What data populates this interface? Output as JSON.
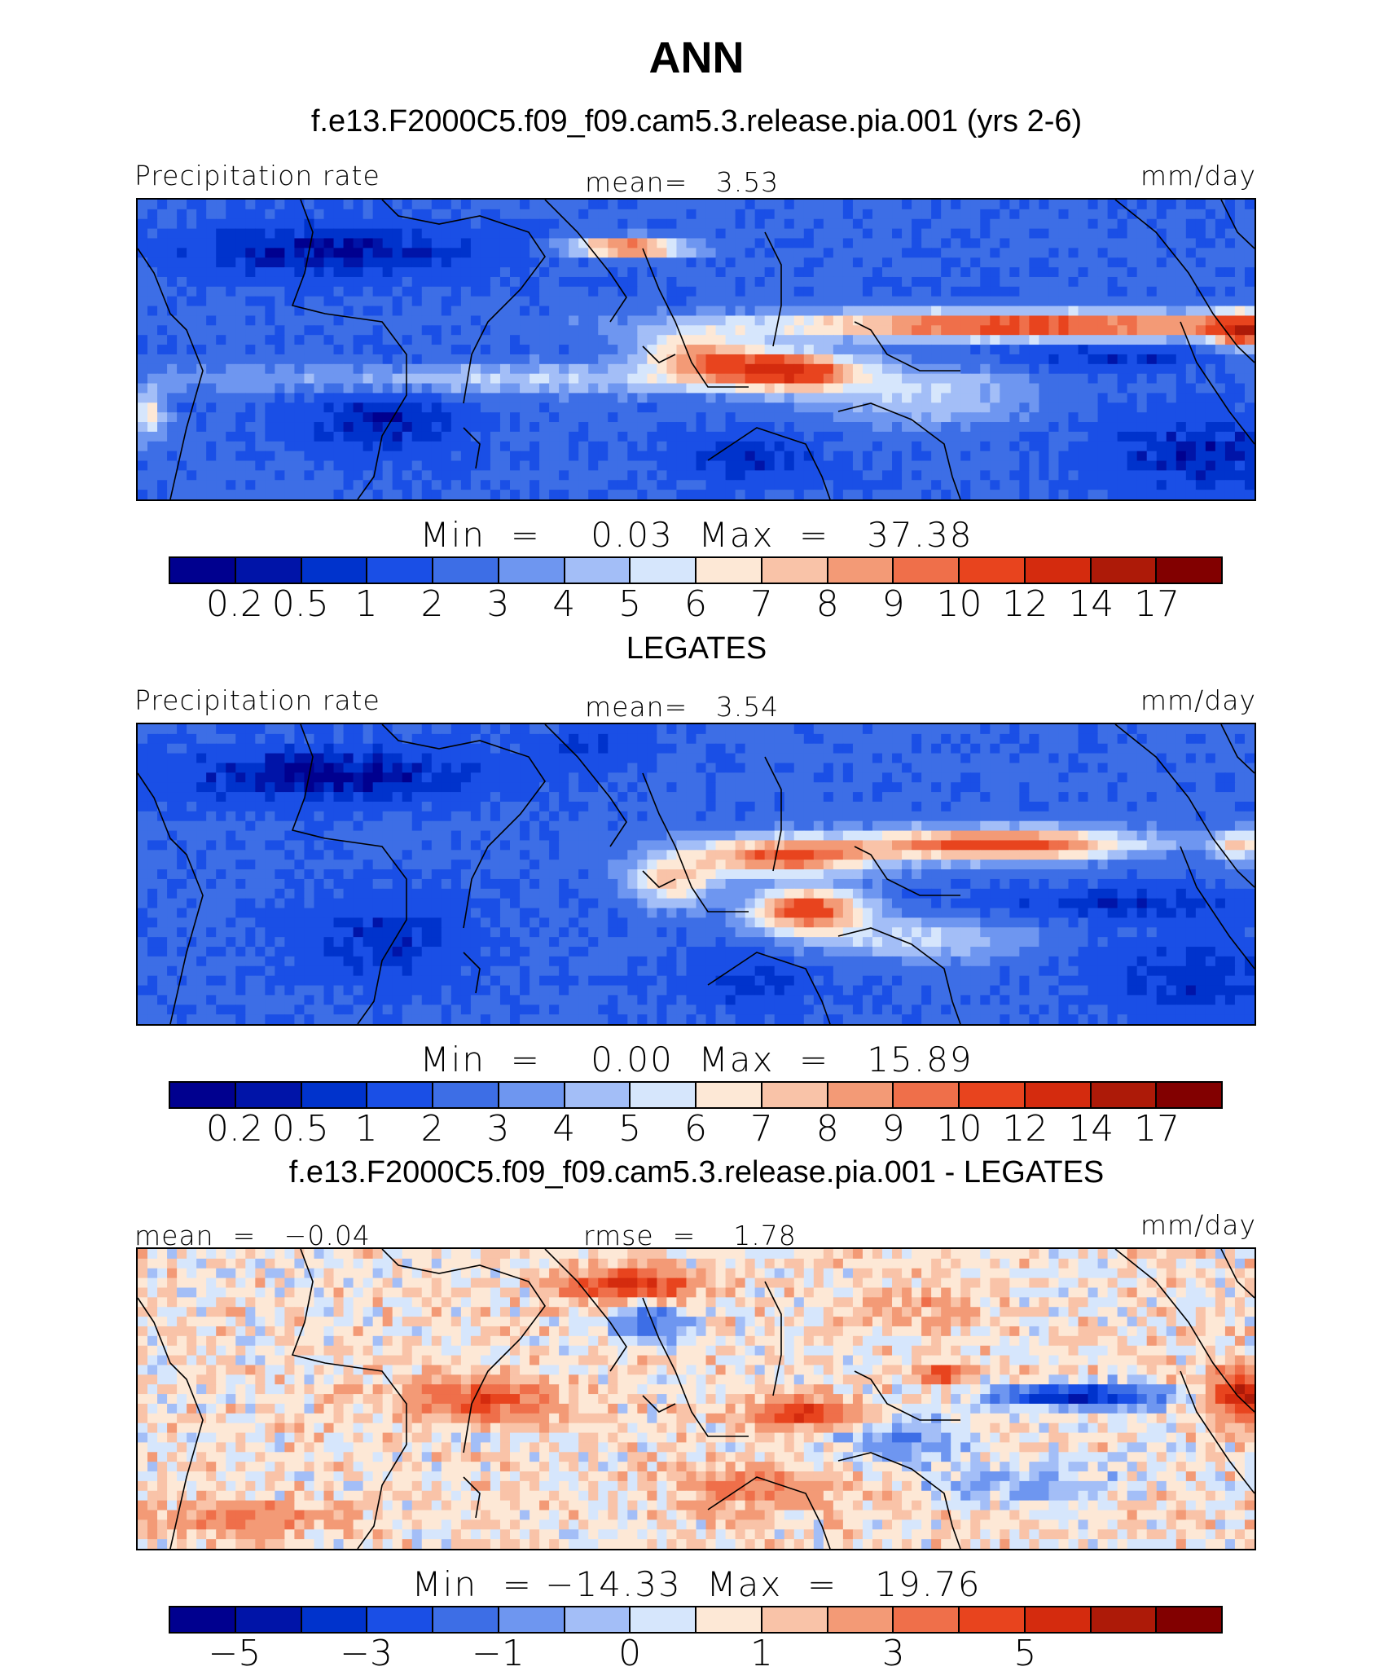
{
  "title": "ANN",
  "colorbar_colors": [
    "#00008f",
    "#0014a8",
    "#0033cc",
    "#1a4fe6",
    "#3d6ee6",
    "#6e96f0",
    "#a3bef7",
    "#d6e6fc",
    "#fde8d6",
    "#f9c3a8",
    "#f39a76",
    "#ef6f4a",
    "#e8441e",
    "#d42b0e",
    "#ad1a08",
    "#820000"
  ],
  "panels": [
    {
      "case_title": "f.e13.F2000C5.f09_f09.cam5.3.release.pia.001 (yrs 2-6)",
      "left_label": "Precipitation rate",
      "center_label": "mean=   3.53",
      "right_label": "mm/day",
      "minmax": "Min  =    0.03  Max  =   37.38",
      "ticks": [
        "0.2",
        "0.5",
        "1",
        "2",
        "3",
        "4",
        "5",
        "6",
        "7",
        "8",
        "9",
        "10",
        "12",
        "14",
        "17"
      ],
      "field": "model"
    },
    {
      "case_title": "LEGATES",
      "left_label": "Precipitation rate",
      "center_label": "mean=   3.54",
      "right_label": "mm/day",
      "minmax": "Min  =    0.00  Max  =   15.89",
      "ticks": [
        "0.2",
        "0.5",
        "1",
        "2",
        "3",
        "4",
        "5",
        "6",
        "7",
        "8",
        "9",
        "10",
        "12",
        "14",
        "17"
      ],
      "field": "obs"
    },
    {
      "case_title": "f.e13.F2000C5.f09_f09.cam5.3.release.pia.001 - LEGATES",
      "left_label": "mean  =   −0.04",
      "center_label": "rmse  =    1.78",
      "right_label": "mm/day",
      "minmax": "Min  = −14.33  Max  =   19.76",
      "ticks": [
        "−5",
        "",
        "−3",
        "",
        "−1",
        "",
        "0",
        "",
        "1",
        "",
        "3",
        "",
        "5"
      ],
      "field": "diff"
    }
  ]
}
